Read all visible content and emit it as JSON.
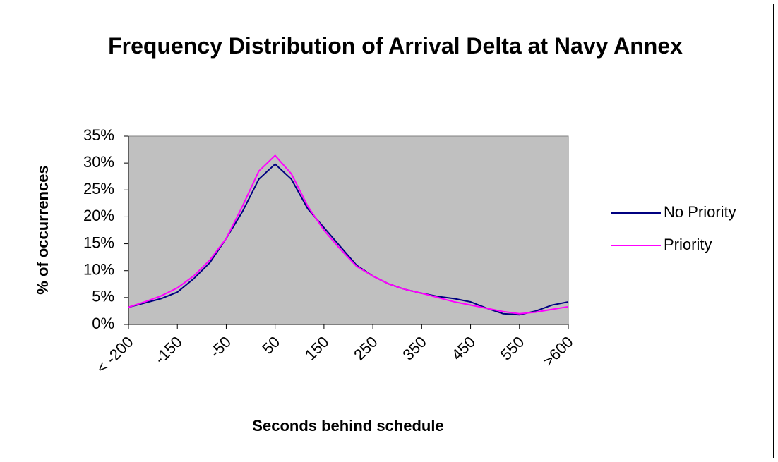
{
  "chart_data": {
    "type": "line",
    "title": "Frequency Distribution of Arrival Delta at Navy Annex",
    "x_label": "Seconds behind schedule",
    "y_label": "% of occurrences",
    "categories": [
      "< -200",
      null,
      null,
      "-150",
      null,
      null,
      "-50",
      null,
      null,
      "50",
      null,
      null,
      "150",
      null,
      null,
      "250",
      null,
      null,
      "350",
      null,
      null,
      "450",
      null,
      null,
      "550",
      null,
      null,
      ">600"
    ],
    "series": [
      {
        "name": "No Priority",
        "color": "#000080",
        "values": [
          3.2,
          4,
          4.8,
          6,
          8.5,
          11.5,
          16,
          21,
          27,
          29.8,
          27,
          21.5,
          18,
          14.5,
          11,
          9,
          7.5,
          6.5,
          5.8,
          5.2,
          4.8,
          4.2,
          3,
          2,
          1.8,
          2.5,
          3.6,
          4.2
        ]
      },
      {
        "name": "Priority",
        "color": "#FF00FF",
        "values": [
          3.2,
          4.2,
          5.3,
          6.8,
          9,
          12,
          16,
          22,
          28.5,
          31.4,
          28,
          22,
          17.5,
          14,
          10.8,
          9,
          7.5,
          6.5,
          5.8,
          5,
          4.2,
          3.6,
          3,
          2.4,
          2,
          2.3,
          2.8,
          3.3
        ]
      }
    ],
    "ylim": [
      0,
      35
    ],
    "yticks": [
      {
        "value": 0,
        "label": "0%"
      },
      {
        "value": 5,
        "label": "5%"
      },
      {
        "value": 10,
        "label": "10%"
      },
      {
        "value": 15,
        "label": "15%"
      },
      {
        "value": 20,
        "label": "20%"
      },
      {
        "value": 25,
        "label": "25%"
      },
      {
        "value": 30,
        "label": "30%"
      },
      {
        "value": 35,
        "label": "35%"
      }
    ],
    "plot_background": "#C0C0C0",
    "legend": "right"
  }
}
